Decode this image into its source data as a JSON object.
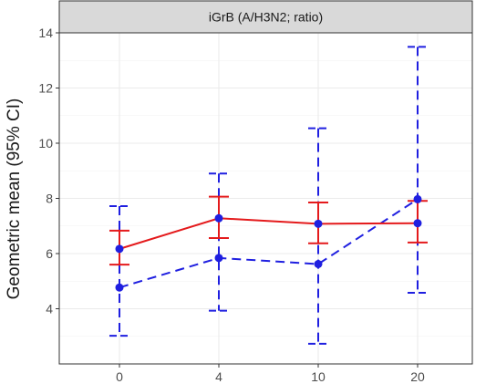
{
  "chart_data": {
    "type": "line",
    "facet_label": "iGrB (A/H3N2; ratio)",
    "title": "",
    "xlabel": "",
    "ylabel": "Geometric mean (95% CI)",
    "categories": [
      "0",
      "4",
      "10",
      "20"
    ],
    "ylim": [
      2.0,
      14.0
    ],
    "y_ticks": [
      4,
      6,
      8,
      10,
      12,
      14
    ],
    "grid": true,
    "legend": "none",
    "series": [
      {
        "color": "#e41a1c",
        "line_style": "solid",
        "values": [
          6.17,
          7.28,
          7.08,
          7.1
        ],
        "lower": [
          5.6,
          6.56,
          6.37,
          6.4
        ],
        "upper": [
          6.83,
          8.06,
          7.85,
          7.91
        ]
      },
      {
        "color": "#1f1fe0",
        "line_style": "dashed",
        "values": [
          4.77,
          5.84,
          5.62,
          7.97
        ],
        "lower": [
          3.02,
          3.93,
          2.73,
          4.58
        ],
        "upper": [
          7.72,
          8.9,
          10.54,
          13.49
        ]
      }
    ],
    "marker_color": "#1f1fe0",
    "panel_border_color": "#333333",
    "strip_fill": "#d9d9d9",
    "gridline_color": "#ebebeb"
  }
}
